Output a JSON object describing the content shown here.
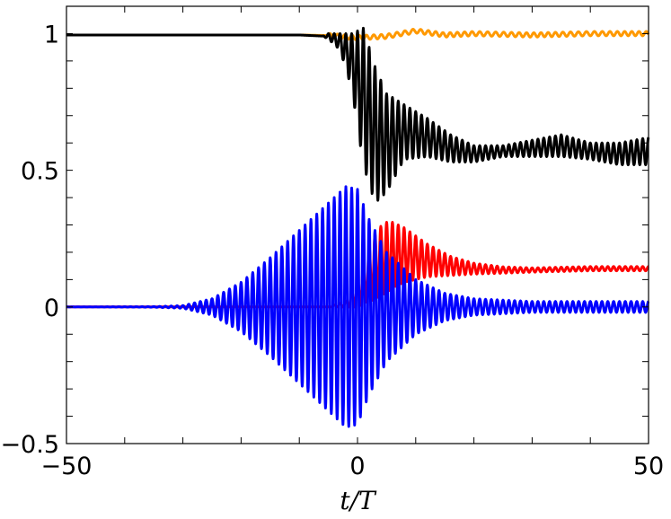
{
  "chart_data": {
    "type": "line",
    "xlabel": "t/T",
    "ylabel": "",
    "xlim": [
      -50,
      50
    ],
    "ylim": [
      -0.5,
      1.1
    ],
    "grid": false,
    "x_ticks": [
      -50,
      0,
      50
    ],
    "x_tick_labels": [
      "−50",
      "0",
      "50"
    ],
    "y_ticks": [
      -0.5,
      0,
      0.5,
      1
    ],
    "y_tick_labels": [
      "−0.5",
      "0",
      "0.5",
      "1"
    ],
    "series": [
      {
        "color": "#ff9900",
        "description_points": {
          "x": [
            -50,
            -10,
            -5,
            0,
            5,
            10,
            15,
            20,
            30,
            40,
            50
          ],
          "y": [
            0.995,
            0.995,
            0.993,
            0.985,
            0.99,
            1.01,
            0.995,
            1.0,
            0.995,
            1.0,
            1.0
          ]
        },
        "oscillation": {
          "start": -5,
          "amplitude": 0.008,
          "period": 1.3
        }
      },
      {
        "color": "#000000",
        "description_points": {
          "x": [
            -50,
            -10,
            -5,
            -3,
            -1,
            1,
            3,
            5,
            8,
            12,
            16,
            20,
            25,
            30,
            35,
            40,
            45,
            50
          ],
          "y": [
            0.995,
            0.995,
            0.99,
            0.97,
            0.9,
            0.77,
            0.63,
            0.6,
            0.64,
            0.62,
            0.58,
            0.56,
            0.57,
            0.58,
            0.59,
            0.57,
            0.56,
            0.57
          ]
        },
        "envelope": {
          "x": [
            -50,
            -6,
            -3,
            -1,
            1,
            3,
            5,
            8,
            12,
            16,
            20,
            25,
            30,
            35,
            40,
            45,
            50
          ],
          "y": [
            0,
            0,
            0.03,
            0.1,
            0.25,
            0.25,
            0.18,
            0.1,
            0.07,
            0.05,
            0.03,
            0.02,
            0.03,
            0.04,
            0.03,
            0.04,
            0.05
          ]
        },
        "oscillation": {
          "period": 1.0
        }
      },
      {
        "color": "#ff0000",
        "description_points": {
          "x": [
            -50,
            -5,
            -2,
            0,
            2,
            4,
            6,
            8,
            12,
            16,
            20,
            25,
            30,
            40,
            50
          ],
          "y": [
            0,
            0,
            0.01,
            0.05,
            0.12,
            0.17,
            0.19,
            0.19,
            0.17,
            0.15,
            0.14,
            0.135,
            0.135,
            0.14,
            0.14
          ]
        },
        "envelope": {
          "x": [
            -50,
            -5,
            -2,
            0,
            3,
            5,
            8,
            12,
            16,
            20,
            25,
            30,
            40,
            50
          ],
          "y": [
            0,
            0,
            0.01,
            0.05,
            0.12,
            0.13,
            0.1,
            0.06,
            0.035,
            0.02,
            0.012,
            0.008,
            0.008,
            0.008
          ]
        },
        "oscillation": {
          "period": 1.0
        }
      },
      {
        "color": "#0000ff",
        "description_points": {
          "x": [
            -50,
            50
          ],
          "y": [
            0,
            0
          ]
        },
        "envelope": {
          "x": [
            -50,
            -35,
            -30,
            -25,
            -20,
            -15,
            -10,
            -5,
            -2,
            0,
            2,
            5,
            10,
            15,
            20,
            25,
            30,
            40,
            50
          ],
          "y": [
            0,
            0.001,
            0.005,
            0.03,
            0.09,
            0.18,
            0.28,
            0.38,
            0.44,
            0.43,
            0.32,
            0.2,
            0.1,
            0.05,
            0.03,
            0.025,
            0.02,
            0.02,
            0.02
          ]
        },
        "oscillation": {
          "period": 1.0
        }
      }
    ]
  }
}
